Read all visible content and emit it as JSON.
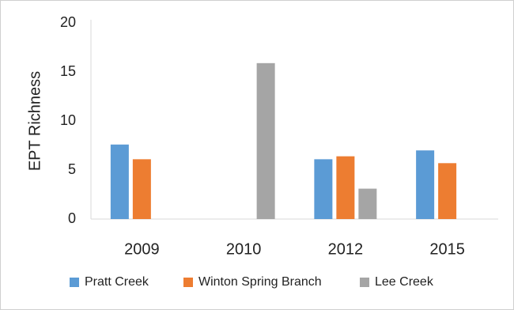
{
  "chart_data": {
    "type": "bar",
    "y_label": "EPT Richness",
    "categories": [
      "2009",
      "2010",
      "2012",
      "2015"
    ],
    "series": [
      {
        "name": "Pratt Creek",
        "color": "#5b9bd5",
        "values": [
          7.6,
          null,
          6.1,
          7.0
        ]
      },
      {
        "name": "Winton Spring Branch",
        "color": "#ed7d31",
        "values": [
          6.1,
          null,
          6.4,
          5.7
        ]
      },
      {
        "name": "Lee Creek",
        "color": "#a5a5a5",
        "values": [
          null,
          15.9,
          3.1,
          null
        ]
      }
    ],
    "ylim": [
      0,
      20
    ],
    "yticks": [
      0,
      5,
      10,
      15,
      20
    ],
    "grid": false,
    "legend": "bottom"
  }
}
